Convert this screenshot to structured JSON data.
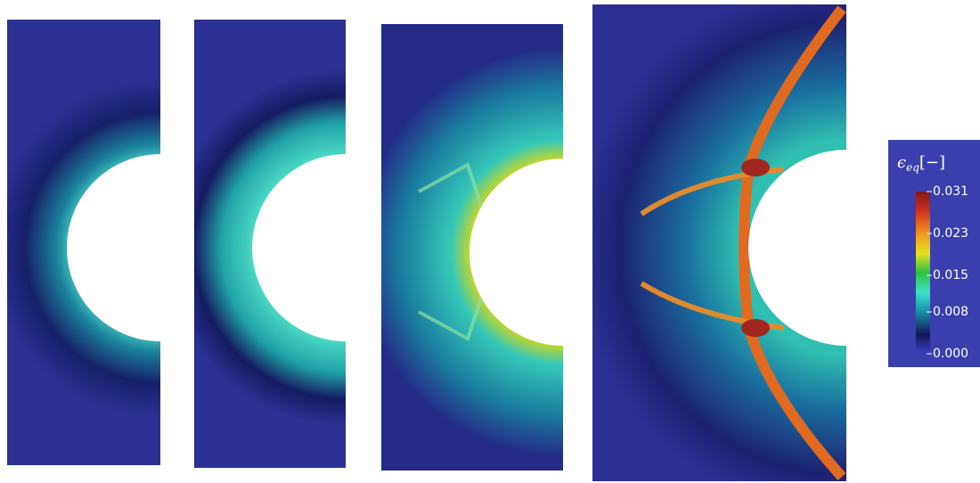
{
  "colorbar": {
    "symbol": "ϵ",
    "subscript": "eq",
    "unit": "[−]",
    "clim": [
      0,
      0.031
    ],
    "ticks": [
      0.031,
      0.023,
      0.015,
      0.008,
      {
        "value": 0,
        "label": "0.000"
      }
    ]
  }
}
